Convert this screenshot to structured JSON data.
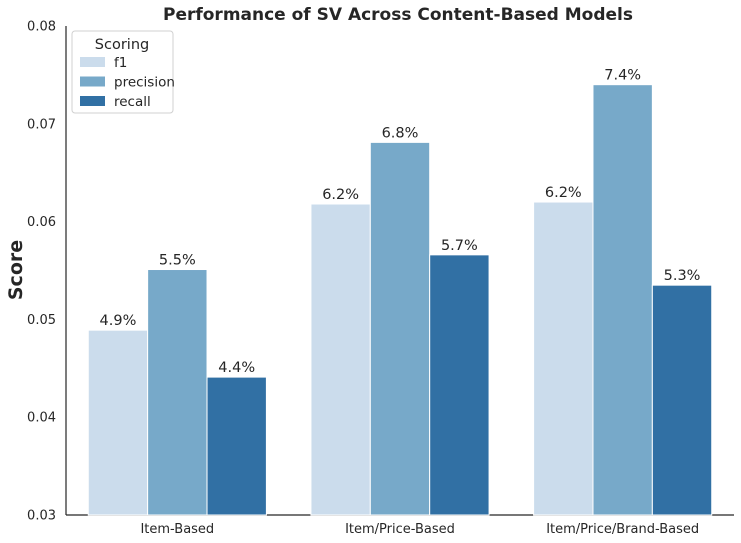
{
  "chart_data": {
    "type": "bar",
    "title": "Performance of SV Across Content-Based Models",
    "xlabel": "",
    "ylabel": "Score",
    "categories": [
      "Item-Based",
      "Item/Price-Based",
      "Item/Price/Brand-Based"
    ],
    "series": [
      {
        "name": "f1",
        "color": "#cbdcec",
        "values": [
          0.0489,
          0.0618,
          0.062
        ],
        "labels": [
          "4.9%",
          "6.2%",
          "6.2%"
        ]
      },
      {
        "name": "precision",
        "color": "#77a9c9",
        "values": [
          0.0551,
          0.0681,
          0.074
        ],
        "labels": [
          "5.5%",
          "6.8%",
          "7.4%"
        ]
      },
      {
        "name": "recall",
        "color": "#3170a4",
        "values": [
          0.0441,
          0.0566,
          0.0535
        ],
        "labels": [
          "4.4%",
          "5.7%",
          "5.3%"
        ]
      }
    ],
    "ylim": [
      0.03,
      0.08
    ],
    "yticks": [
      "0.03",
      "0.04",
      "0.05",
      "0.06",
      "0.07",
      "0.08"
    ],
    "grid": false,
    "legend": {
      "title": "Scoring",
      "placement": "top-left"
    }
  }
}
